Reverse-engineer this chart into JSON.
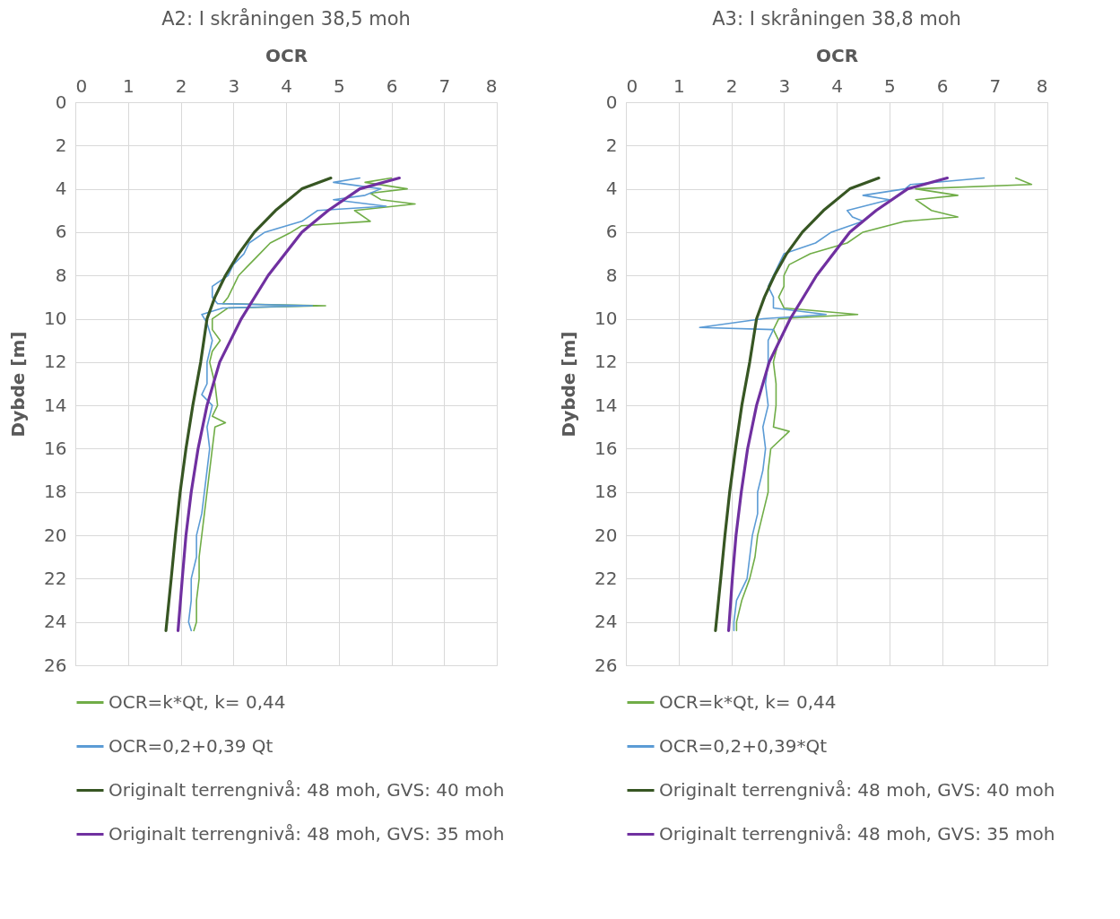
{
  "chart_data": [
    {
      "type": "line",
      "title": "A2: I skråningen 38,5 moh",
      "xlabel": "OCR",
      "ylabel": "Dybde [m]",
      "xlim": [
        0,
        8
      ],
      "xticks": [
        0,
        1,
        2,
        3,
        4,
        5,
        6,
        7,
        8
      ],
      "ylim": [
        26,
        0
      ],
      "yticks": [
        0,
        2,
        4,
        6,
        8,
        10,
        12,
        14,
        16,
        18,
        20,
        22,
        24,
        26
      ],
      "grid": true,
      "legend": "bottom",
      "series": [
        {
          "name": "OCR=k*Qt, k= 0,44",
          "color": "#70ad47",
          "x": [
            6.0,
            5.5,
            6.3,
            5.6,
            5.8,
            6.45,
            5.3,
            5.6,
            4.3,
            4.1,
            3.7,
            3.5,
            3.3,
            3.1,
            3.0,
            2.9,
            2.8,
            4.75,
            2.9,
            2.6,
            2.6,
            2.75,
            2.6,
            2.55,
            2.65,
            2.7,
            2.6,
            2.85,
            2.65,
            2.6,
            2.55,
            2.5,
            2.45,
            2.4,
            2.35,
            2.35,
            2.3,
            2.3,
            2.25
          ],
          "values": [
            3.5,
            3.7,
            4,
            4.2,
            4.5,
            4.7,
            5,
            5.5,
            5.7,
            6,
            6.5,
            7,
            7.5,
            8,
            8.5,
            9,
            9.3,
            9.4,
            9.5,
            10,
            10.5,
            11,
            11.5,
            12,
            13,
            14,
            14.5,
            14.8,
            15,
            16,
            17,
            18,
            19,
            20,
            21,
            22,
            23,
            24,
            24.4
          ]
        },
        {
          "name": "OCR=0,2+0,39 Qt",
          "color": "#5b9bd5",
          "x": [
            5.4,
            4.9,
            5.8,
            5.5,
            4.9,
            5.9,
            4.6,
            4.3,
            3.6,
            3.3,
            3.2,
            3.0,
            2.9,
            2.6,
            2.6,
            2.7,
            4.5,
            2.8,
            2.4,
            2.5,
            2.6,
            2.5,
            2.5,
            2.4,
            2.6,
            2.5,
            2.55,
            2.5,
            2.45,
            2.4,
            2.3,
            2.3,
            2.2,
            2.2,
            2.15,
            2.2
          ],
          "values": [
            3.5,
            3.7,
            4,
            4.3,
            4.5,
            4.8,
            5,
            5.5,
            6,
            6.5,
            7,
            7.5,
            8,
            8.5,
            9,
            9.3,
            9.4,
            9.5,
            9.8,
            10.2,
            11,
            12,
            13,
            13.5,
            14,
            15,
            16,
            17,
            18,
            19,
            20,
            21,
            22,
            23,
            24,
            24.4
          ]
        },
        {
          "name": "Originalt terrengnivå: 48 moh, GVS: 40 moh",
          "color": "#375623",
          "x": [
            4.85,
            4.3,
            3.8,
            3.4,
            3.1,
            2.85,
            2.65,
            2.5,
            2.38,
            2.23,
            2.1,
            1.99,
            1.9,
            1.82,
            1.72
          ],
          "values": [
            3.5,
            4,
            5,
            6,
            7,
            8,
            9,
            10,
            12,
            14,
            16,
            18,
            20,
            22,
            24.4
          ]
        },
        {
          "name": "Originalt terrengnivå: 48 moh, GVS: 35 moh",
          "color": "#7030a0",
          "x": [
            6.15,
            5.4,
            4.8,
            4.3,
            3.66,
            3.15,
            2.74,
            2.5,
            2.33,
            2.2,
            2.1,
            2.03,
            1.95
          ],
          "values": [
            3.5,
            4,
            5,
            6,
            8,
            10,
            12,
            14,
            16,
            18,
            20,
            22,
            24.4
          ]
        }
      ]
    },
    {
      "type": "line",
      "title": "A3: I skråningen 38,8 moh",
      "xlabel": "OCR",
      "ylabel": "Dybde [m]",
      "xlim": [
        0,
        8
      ],
      "xticks": [
        0,
        1,
        2,
        3,
        4,
        5,
        6,
        7,
        8
      ],
      "ylim": [
        26,
        0
      ],
      "yticks": [
        0,
        2,
        4,
        6,
        8,
        10,
        12,
        14,
        16,
        18,
        20,
        22,
        24,
        26
      ],
      "grid": true,
      "legend": "bottom",
      "series": [
        {
          "name": "OCR=k*Qt, k= 0,44",
          "color": "#70ad47",
          "x": [
            7.4,
            7.7,
            5.5,
            6.3,
            5.5,
            5.8,
            6.3,
            5.3,
            4.5,
            4.2,
            3.5,
            3.1,
            3.0,
            3.0,
            2.9,
            3.0,
            4.4,
            2.9,
            2.8,
            2.9,
            2.8,
            2.85,
            2.85,
            2.8,
            3.1,
            2.75,
            2.7,
            2.7,
            2.6,
            2.5,
            2.45,
            2.35,
            2.2,
            2.1,
            2.1
          ],
          "values": [
            3.5,
            3.8,
            4,
            4.3,
            4.5,
            5,
            5.3,
            5.5,
            6,
            6.5,
            7,
            7.5,
            8,
            8.5,
            9,
            9.5,
            9.8,
            10,
            10.5,
            11,
            12,
            13,
            14,
            15,
            15.2,
            16,
            17,
            18,
            19,
            20,
            21,
            22,
            23,
            24,
            24.4
          ]
        },
        {
          "name": "OCR=0,2+0,39*Qt",
          "color": "#5b9bd5",
          "x": [
            6.8,
            5.4,
            5.3,
            4.5,
            5.0,
            4.2,
            4.3,
            4.5,
            3.9,
            3.6,
            3.0,
            2.9,
            2.8,
            2.7,
            2.8,
            2.8,
            3.8,
            2.6,
            1.4,
            2.8,
            2.7,
            2.7,
            2.65,
            2.7,
            2.6,
            2.65,
            2.6,
            2.5,
            2.5,
            2.4,
            2.35,
            2.3,
            2.1,
            2.05,
            2.05
          ],
          "values": [
            3.5,
            3.8,
            4,
            4.3,
            4.5,
            5,
            5.3,
            5.5,
            6,
            6.5,
            7,
            7.5,
            8,
            8.5,
            9,
            9.5,
            9.8,
            10,
            10.4,
            10.5,
            11,
            12,
            13,
            14,
            15,
            16,
            17,
            18,
            19,
            20,
            21,
            22,
            23,
            24,
            24.4
          ]
        },
        {
          "name": "Originalt terrengnivå: 48 moh, GVS: 40 moh",
          "color": "#375623",
          "x": [
            4.8,
            4.25,
            3.75,
            3.35,
            3.05,
            2.82,
            2.63,
            2.48,
            2.35,
            2.2,
            2.08,
            1.97,
            1.88,
            1.8,
            1.7
          ],
          "values": [
            3.5,
            4,
            5,
            6,
            7,
            8,
            9,
            10,
            12,
            14,
            16,
            18,
            20,
            22,
            24.4
          ]
        },
        {
          "name": "Originalt terrengnivå: 48 moh, GVS: 35 moh",
          "color": "#7030a0",
          "x": [
            6.1,
            5.35,
            4.75,
            4.25,
            3.62,
            3.12,
            2.72,
            2.48,
            2.31,
            2.19,
            2.09,
            2.02,
            1.95
          ],
          "values": [
            3.5,
            4,
            5,
            6,
            8,
            10,
            12,
            14,
            16,
            18,
            20,
            22,
            24.4
          ]
        }
      ]
    }
  ]
}
